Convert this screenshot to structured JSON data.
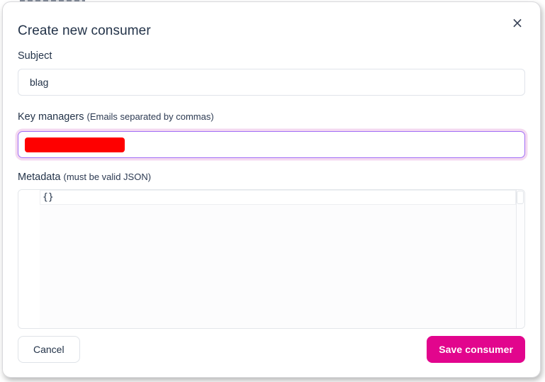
{
  "modal": {
    "title": "Create new consumer",
    "close_icon": "×"
  },
  "fields": {
    "subject": {
      "label": "Subject",
      "value": "blag"
    },
    "key_managers": {
      "label": "Key managers",
      "hint": "(Emails separated by commas)",
      "value_state": "redacted"
    },
    "metadata": {
      "label": "Metadata",
      "hint": "(must be valid JSON)",
      "value": "{}"
    }
  },
  "footer": {
    "cancel_label": "Cancel",
    "save_label": "Save consumer"
  },
  "colors": {
    "accent_pink": "#e2058d",
    "focus_border_purple": "#a06ef6",
    "focus_glow_pink": "#f4d9f0",
    "redaction_red": "#fe0000",
    "text_navy": "#233349"
  }
}
